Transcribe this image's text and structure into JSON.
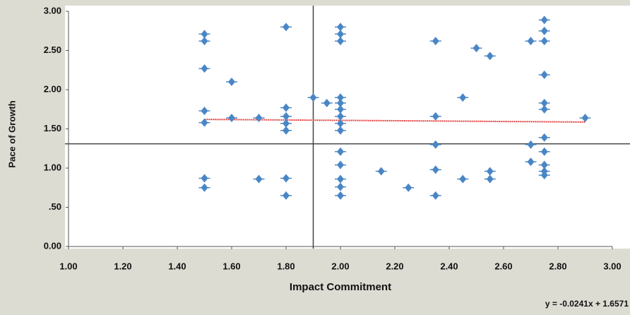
{
  "chart_data": {
    "type": "scatter",
    "x_label": "Impact Commitment",
    "y_label": "Pace of Growth",
    "x": [
      1.5,
      1.5,
      1.5,
      1.5,
      1.5,
      1.5,
      1.5,
      1.6,
      1.6,
      1.7,
      1.7,
      1.8,
      1.8,
      1.8,
      1.8,
      1.8,
      1.8,
      1.8,
      1.9,
      1.95,
      2,
      2,
      2,
      2,
      2,
      2,
      2,
      2,
      2,
      2,
      2,
      2,
      2,
      2,
      2.15,
      2.25,
      2.35,
      2.35,
      2.35,
      2.35,
      2.35,
      2.45,
      2.45,
      2.5,
      2.55,
      2.55,
      2.55,
      2.7,
      2.7,
      2.7,
      2.75,
      2.75,
      2.75,
      2.75,
      2.75,
      2.75,
      2.75,
      2.75,
      2.75,
      2.75,
      2.75,
      2.9
    ],
    "values": [
      2.71,
      2.62,
      2.27,
      1.73,
      1.58,
      0.87,
      0.75,
      2.1,
      1.64,
      1.64,
      0.86,
      2.8,
      1.77,
      1.66,
      1.57,
      1.48,
      0.87,
      0.65,
      1.9,
      1.83,
      2.8,
      2.71,
      2.62,
      1.9,
      1.83,
      1.75,
      1.66,
      1.57,
      1.48,
      1.21,
      1.04,
      0.86,
      0.76,
      0.65,
      0.96,
      0.75,
      2.62,
      1.66,
      1.3,
      0.98,
      0.65,
      1.9,
      0.86,
      2.53,
      2.43,
      0.96,
      0.86,
      2.62,
      1.3,
      1.08,
      2.89,
      2.75,
      2.62,
      2.19,
      1.83,
      1.75,
      1.39,
      1.21,
      1.04,
      0.96,
      0.91,
      1.64
    ],
    "color": "#4a86c5",
    "xlim": [
      1,
      3
    ],
    "xticks": [
      {
        "value": 1,
        "label": "1.00"
      },
      {
        "value": 1.2,
        "label": "1.20"
      },
      {
        "value": 1.4,
        "label": "1.40"
      },
      {
        "value": 1.6,
        "label": "1.60"
      },
      {
        "value": 1.8,
        "label": "1.80"
      },
      {
        "value": 2,
        "label": "2.00"
      },
      {
        "value": 2.2,
        "label": "2.20"
      },
      {
        "value": 2.4,
        "label": "2.40"
      },
      {
        "value": 2.6,
        "label": "2.60"
      },
      {
        "value": 2.8,
        "label": "2.80"
      },
      {
        "value": 3,
        "label": "3.00"
      }
    ],
    "ylim": [
      0,
      3
    ],
    "yticks": [
      {
        "value": 0,
        "label": "0.00"
      },
      {
        "value": 0.5,
        "label": ".50"
      },
      {
        "value": 1,
        "label": "1.00"
      },
      {
        "value": 1.5,
        "label": "1.50"
      },
      {
        "value": 2,
        "label": "2.00"
      },
      {
        "value": 2.5,
        "label": "2.50"
      },
      {
        "value": 3,
        "label": "3.00"
      }
    ],
    "reference_lines": {
      "x": 1.9,
      "y": 1.31
    },
    "trendline": {
      "label": "y = -0.0241x + 1.6571",
      "slope": -0.0241,
      "intercept": 1.6571,
      "x_range": [
        1.5,
        2.9
      ],
      "color": "#e03c3c"
    }
  }
}
